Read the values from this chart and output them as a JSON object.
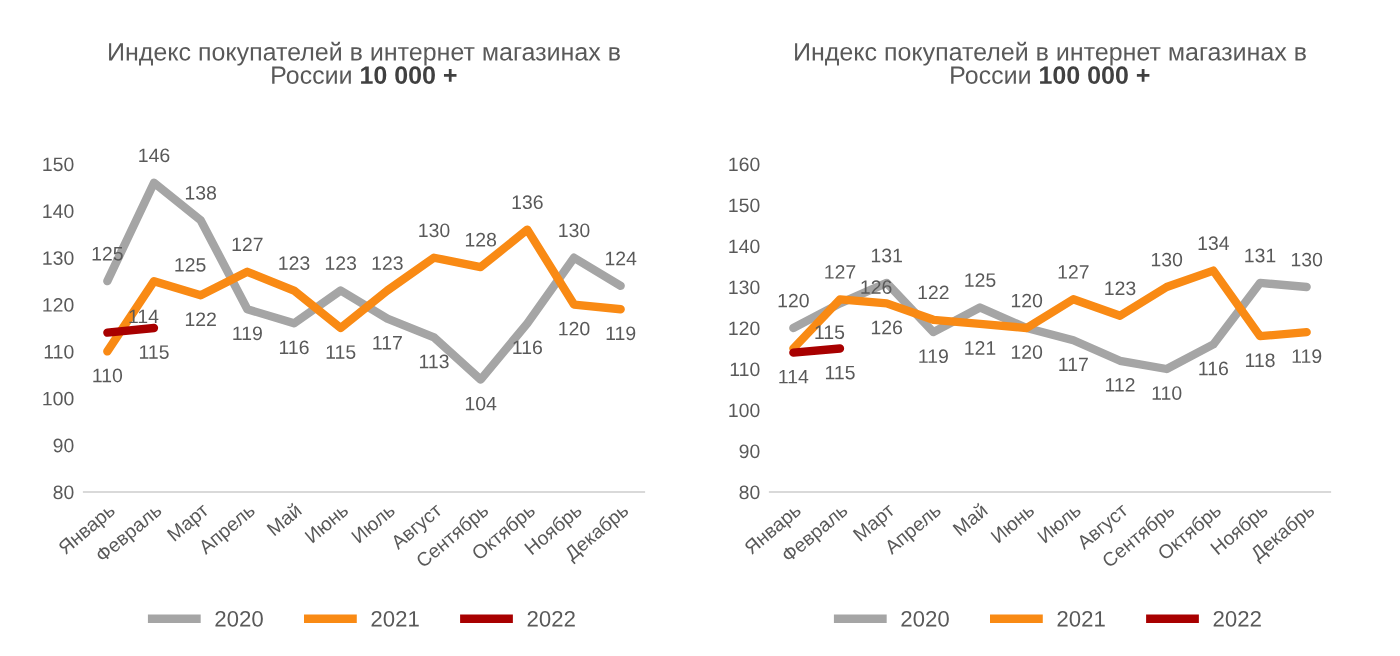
{
  "chart_data": [
    {
      "type": "line",
      "title": "Индекс покупателей в интернет магазинах в России",
      "subtitle": "10 000 +",
      "categories": [
        "Январь",
        "Февраль",
        "Март",
        "Апрель",
        "Май",
        "Июнь",
        "Июль",
        "Август",
        "Сентябрь",
        "Октябрь",
        "Ноябрь",
        "Декабрь"
      ],
      "series": [
        {
          "name": "2020",
          "color": "#a5a5a5",
          "values": [
            125,
            146,
            138,
            119,
            116,
            123,
            117,
            113,
            104,
            116,
            130,
            124
          ]
        },
        {
          "name": "2021",
          "color": "#f98a14",
          "values": [
            110,
            125,
            122,
            127,
            123,
            115,
            123,
            130,
            128,
            136,
            120,
            119
          ]
        },
        {
          "name": "2022",
          "color": "#a80000",
          "values": [
            114,
            115,
            null,
            null,
            null,
            null,
            null,
            null,
            null,
            null,
            null,
            null
          ]
        }
      ],
      "ylim": [
        80,
        150
      ],
      "yticks": [
        80,
        90,
        100,
        110,
        120,
        130,
        140,
        150
      ],
      "data_labels": true,
      "legend": "bottom"
    },
    {
      "type": "line",
      "title": "Индекс покупателей в интернет магазинах в России",
      "subtitle": "100 000 +",
      "categories": [
        "Январь",
        "Февраль",
        "Март",
        "Апрель",
        "Май",
        "Июнь",
        "Июль",
        "Август",
        "Сентябрь",
        "Октябрь",
        "Ноябрь",
        "Декабрь"
      ],
      "series": [
        {
          "name": "2020",
          "color": "#a5a5a5",
          "values": [
            120,
            126,
            131,
            119,
            125,
            120,
            117,
            112,
            110,
            116,
            131,
            130
          ]
        },
        {
          "name": "2021",
          "color": "#f98a14",
          "values": [
            115,
            127,
            126,
            122,
            121,
            120,
            127,
            123,
            130,
            134,
            118,
            119
          ]
        },
        {
          "name": "2022",
          "color": "#a80000",
          "values": [
            114,
            115,
            null,
            null,
            null,
            null,
            null,
            null,
            null,
            null,
            null,
            null
          ]
        }
      ],
      "ylim": [
        80,
        160
      ],
      "yticks": [
        80,
        90,
        100,
        110,
        120,
        130,
        140,
        150,
        160
      ],
      "data_labels": true,
      "legend": "bottom"
    }
  ]
}
